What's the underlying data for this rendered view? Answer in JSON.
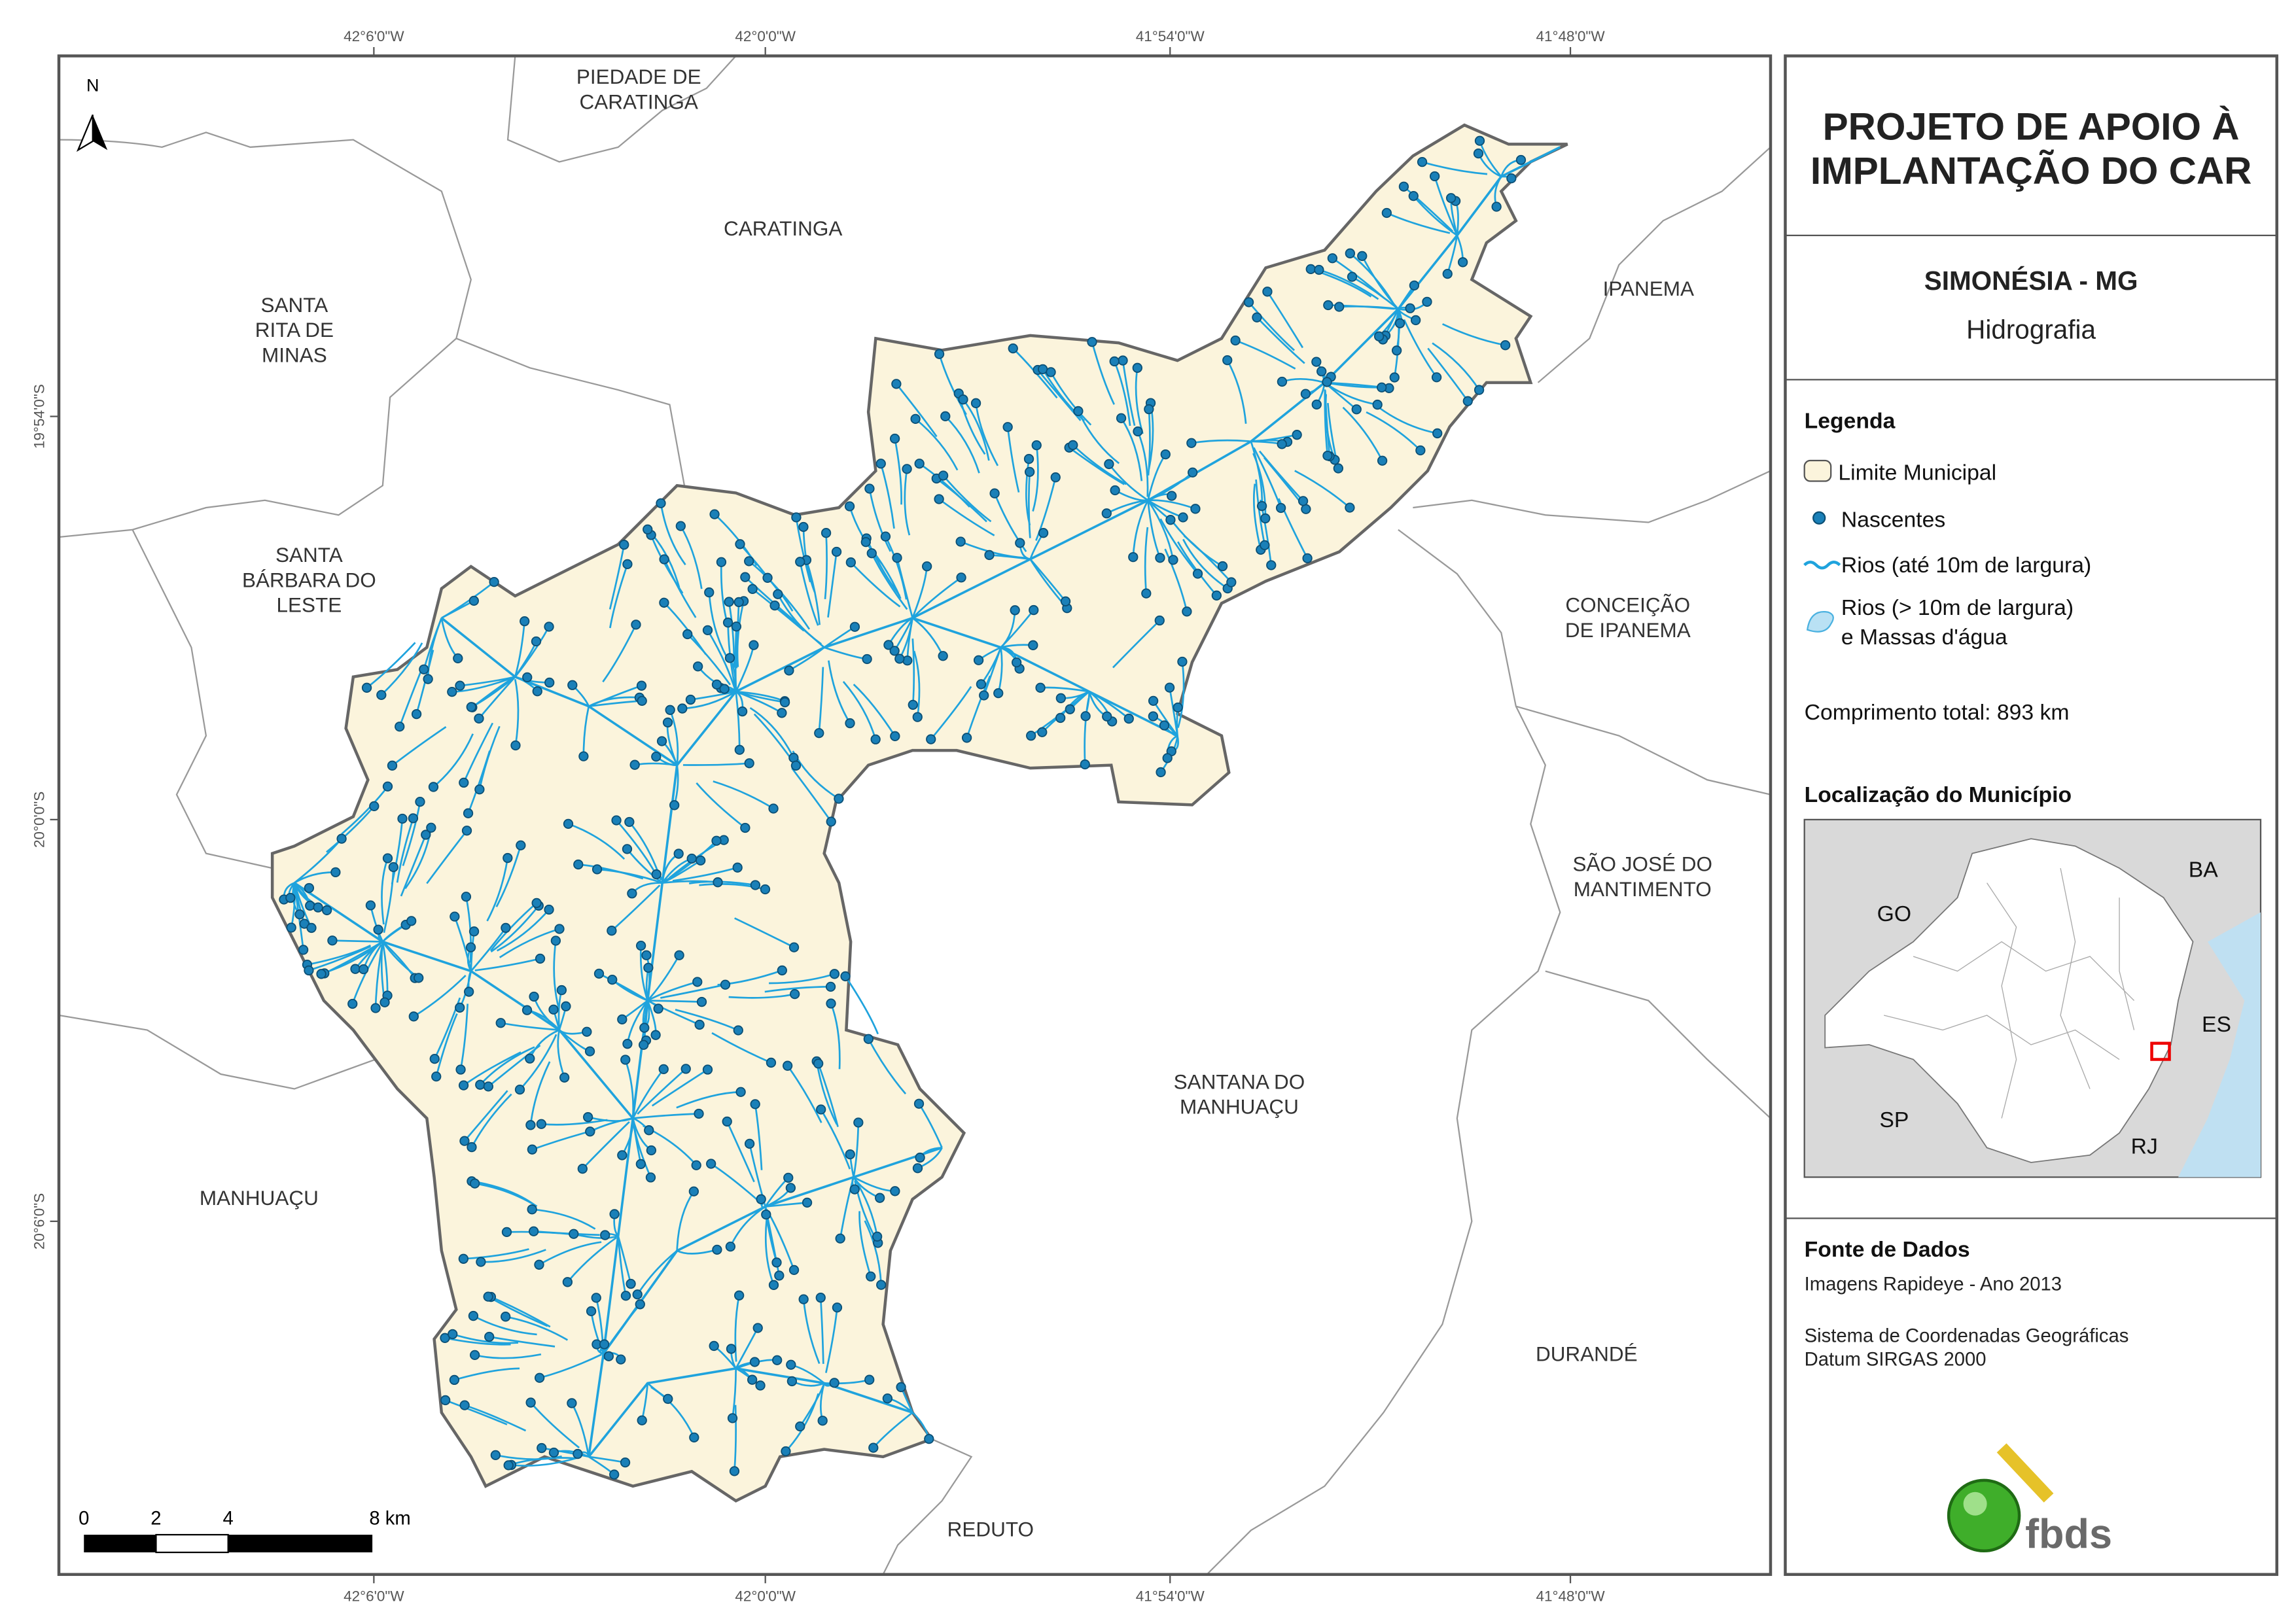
{
  "map": {
    "grid_labels_top": [
      "42°6'0\"W",
      "42°0'0\"W",
      "41°54'0\"W",
      "41°48'0\"W"
    ],
    "grid_labels_bottom": [
      "42°6'0\"W",
      "42°0'0\"W",
      "41°54'0\"W",
      "41°48'0\"W"
    ],
    "grid_labels_left": [
      "19°54'0\"S",
      "20°0'0\"S",
      "20°6'0\"S"
    ],
    "north": "N",
    "places": [
      {
        "lines": [
          "PIEDADE DE",
          "CARATINGA"
        ]
      },
      {
        "lines": [
          "CARATINGA"
        ]
      },
      {
        "lines": [
          "IPANEMA"
        ]
      },
      {
        "lines": [
          "SANTA",
          "RITA DE",
          "MINAS"
        ]
      },
      {
        "lines": [
          "SANTA",
          "BÁRBARA DO",
          "LESTE"
        ]
      },
      {
        "lines": [
          "CONCEIÇÃO",
          "DE IPANEMA"
        ]
      },
      {
        "lines": [
          "SÃO JOSÉ DO",
          "MANTIMENTO"
        ]
      },
      {
        "lines": [
          "SANTANA DO",
          "MANHUAÇU"
        ]
      },
      {
        "lines": [
          "MANHUAÇU"
        ]
      },
      {
        "lines": [
          "DURANDÉ"
        ]
      },
      {
        "lines": [
          "REDUTO"
        ]
      }
    ],
    "scale_labels": [
      "0",
      "2",
      "4",
      "8 km"
    ]
  },
  "panel": {
    "title": [
      "PROJETO DE APOIO À",
      "IMPLANTAÇÃO DO CAR"
    ],
    "municipality": "SIMONÉSIA - MG",
    "theme": "Hidrografia",
    "legend": {
      "title": "Legenda",
      "items": [
        {
          "lines": [
            "Limite Municipal"
          ]
        },
        {
          "lines": [
            "Nascentes"
          ]
        },
        {
          "lines": [
            "Rios (até 10m de largura)"
          ]
        },
        {
          "lines": [
            "Rios (> 10m de largura)",
            "e Massas d'água"
          ]
        }
      ]
    },
    "total_length": "Comprimento total: 893 km",
    "location": {
      "title": "Localização do Município",
      "states": [
        "BA",
        "GO",
        "ES",
        "SP",
        "RJ"
      ]
    },
    "source": {
      "title": "Fonte de Dados",
      "lines": [
        "Imagens Rapideye - Ano 2013",
        "Sistema de Coordenadas Geográficas",
        "Datum SIRGAS 2000"
      ]
    },
    "logo": "fbds"
  }
}
